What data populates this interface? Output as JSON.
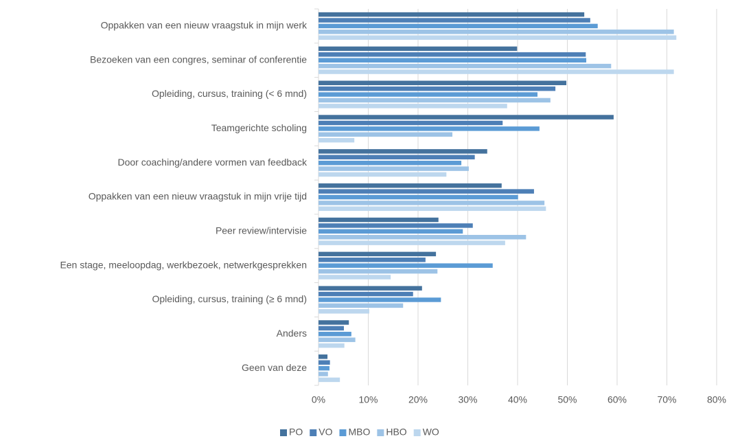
{
  "chart_data": {
    "type": "hbar",
    "categories": [
      "Oppakken van een nieuw vraagstuk in mijn werk",
      "Bezoeken van een congres, seminar of conferentie",
      "Opleiding, cursus, training (< 6 mnd)",
      "Teamgerichte scholing",
      "Door coaching/andere vormen van feedback",
      "Oppakken van een nieuw vraagstuk in mijn vrije tijd",
      "Peer review/intervisie",
      "Een stage, meeloopdag, werkbezoek, netwerkgesprekken",
      "Opleiding, cursus, training (≥ 6 mnd)",
      "Anders",
      "Geen van deze"
    ],
    "series": [
      {
        "name": "PO",
        "color": "#44729d",
        "values": [
          53.4,
          39.9,
          49.8,
          59.3,
          33.9,
          36.8,
          24.1,
          23.6,
          20.8,
          6.1,
          1.8
        ]
      },
      {
        "name": "VO",
        "color": "#4d7fb6",
        "values": [
          54.6,
          53.7,
          47.6,
          37.0,
          31.4,
          43.3,
          31.0,
          21.5,
          19.0,
          5.1,
          2.3
        ]
      },
      {
        "name": "MBO",
        "color": "#5b9bd5",
        "values": [
          56.1,
          53.8,
          44.0,
          44.4,
          28.7,
          40.1,
          29.0,
          35.0,
          24.6,
          6.6,
          2.2
        ]
      },
      {
        "name": "HBO",
        "color": "#9dc3e6",
        "values": [
          71.4,
          58.8,
          46.6,
          26.9,
          30.2,
          45.4,
          41.7,
          23.9,
          17.0,
          7.4,
          1.9
        ]
      },
      {
        "name": "WO",
        "color": "#bdd7ee",
        "values": [
          71.9,
          71.4,
          37.9,
          7.2,
          25.7,
          45.7,
          37.5,
          14.5,
          10.2,
          5.2,
          4.3
        ]
      }
    ],
    "xlim": [
      0,
      80
    ],
    "xticks": [
      {
        "value": 0,
        "label": "0%"
      },
      {
        "value": 10,
        "label": "10%"
      },
      {
        "value": 20,
        "label": "20%"
      },
      {
        "value": 30,
        "label": "30%"
      },
      {
        "value": 40,
        "label": "40%"
      },
      {
        "value": 50,
        "label": "50%"
      },
      {
        "value": 60,
        "label": "60%"
      },
      {
        "value": 70,
        "label": "70%"
      },
      {
        "value": 80,
        "label": "80%"
      }
    ],
    "grid": true,
    "legend": "bottom"
  }
}
